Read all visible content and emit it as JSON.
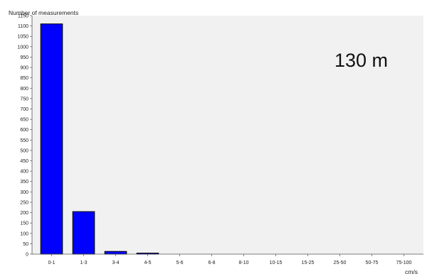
{
  "chart_data": {
    "type": "bar",
    "ylabel": "Number of measurements",
    "xlabel": "cm/s",
    "annotation": "130 m",
    "categories": [
      "0-1",
      "1-3",
      "3-4",
      "4-5",
      "5-6",
      "6-8",
      "8-10",
      "10-15",
      "15-25",
      "25-50",
      "50-75",
      "75-100"
    ],
    "values": [
      1110,
      205,
      13,
      5,
      0,
      0,
      0,
      0,
      0,
      0,
      0,
      0
    ],
    "ylim": [
      0,
      1150
    ],
    "yticks": [
      0,
      50,
      100,
      150,
      200,
      250,
      300,
      350,
      400,
      450,
      500,
      550,
      600,
      650,
      700,
      750,
      800,
      850,
      900,
      950,
      1000,
      1050,
      1100,
      1150
    ],
    "grid": false,
    "colors": {
      "bar": "#0000ff",
      "bar_stroke": "#000000",
      "plot_bg": "#f1f1f1"
    }
  }
}
